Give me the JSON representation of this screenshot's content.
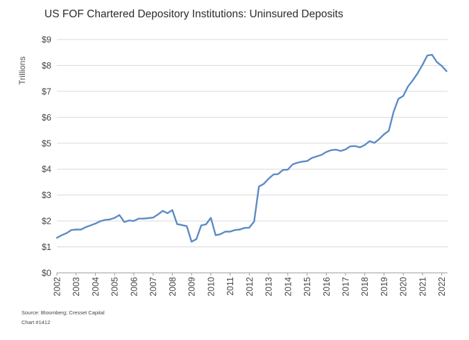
{
  "source_line": "Source: Bloomberg; Cresset Capital",
  "chart_number": "Chart #1412",
  "chart_data": {
    "type": "line",
    "title": "US FOF Chartered Depository Institutions: Uninsured Deposits",
    "ylabel": "Trillions",
    "xlabel": "",
    "ylim": [
      0,
      9
    ],
    "xlim": [
      2002,
      2022.3
    ],
    "grid": "horizontal",
    "color": "#5b8ac5",
    "y_ticks": [
      "$0",
      "$1",
      "$2",
      "$3",
      "$4",
      "$5",
      "$6",
      "$7",
      "$8",
      "$9"
    ],
    "x_ticks": [
      "2002",
      "2003",
      "2004",
      "2005",
      "2006",
      "2007",
      "2008",
      "2009",
      "2010",
      "2011",
      "2012",
      "2013",
      "2014",
      "2015",
      "2016",
      "2017",
      "2018",
      "2019",
      "2020",
      "2021",
      "2022"
    ],
    "series": [
      {
        "x": [
          2002.0,
          2002.25,
          2002.5,
          2002.75,
          2003.0,
          2003.25,
          2003.5,
          2003.75,
          2004.0,
          2004.25,
          2004.5,
          2004.75,
          2005.0,
          2005.25,
          2005.5,
          2005.75,
          2006.0,
          2006.25,
          2006.5,
          2006.75,
          2007.0,
          2007.25,
          2007.5,
          2007.75,
          2008.0,
          2008.25,
          2008.5,
          2008.75,
          2009.0,
          2009.25,
          2009.5,
          2009.75,
          2010.0,
          2010.25,
          2010.5,
          2010.75,
          2011.0,
          2011.25,
          2011.5,
          2011.75,
          2012.0,
          2012.25,
          2012.5,
          2012.75,
          2013.0,
          2013.25,
          2013.5,
          2013.75,
          2014.0,
          2014.25,
          2014.5,
          2014.75,
          2015.0,
          2015.25,
          2015.5,
          2015.75,
          2016.0,
          2016.25,
          2016.5,
          2016.75,
          2017.0,
          2017.25,
          2017.5,
          2017.75,
          2018.0,
          2018.25,
          2018.5,
          2018.75,
          2019.0,
          2019.25,
          2019.5,
          2019.75,
          2020.0,
          2020.25,
          2020.5,
          2020.75,
          2021.0,
          2021.25,
          2021.5,
          2021.75,
          2022.0,
          2022.25
        ],
        "values": [
          1.35,
          1.45,
          1.53,
          1.65,
          1.67,
          1.67,
          1.76,
          1.83,
          1.9,
          1.99,
          2.04,
          2.06,
          2.12,
          2.23,
          1.96,
          2.02,
          2.0,
          2.09,
          2.09,
          2.11,
          2.13,
          2.25,
          2.39,
          2.3,
          2.42,
          1.88,
          1.84,
          1.8,
          1.2,
          1.3,
          1.83,
          1.87,
          2.12,
          1.45,
          1.49,
          1.59,
          1.59,
          1.65,
          1.67,
          1.73,
          1.74,
          1.98,
          3.33,
          3.43,
          3.63,
          3.79,
          3.81,
          3.97,
          3.98,
          4.18,
          4.25,
          4.29,
          4.31,
          4.43,
          4.49,
          4.55,
          4.66,
          4.73,
          4.75,
          4.7,
          4.76,
          4.88,
          4.89,
          4.84,
          4.93,
          5.08,
          5.01,
          5.16,
          5.34,
          5.48,
          6.21,
          6.71,
          6.82,
          7.19,
          7.43,
          7.7,
          8.02,
          8.38,
          8.41,
          8.13,
          7.98,
          7.78
        ]
      }
    ]
  }
}
